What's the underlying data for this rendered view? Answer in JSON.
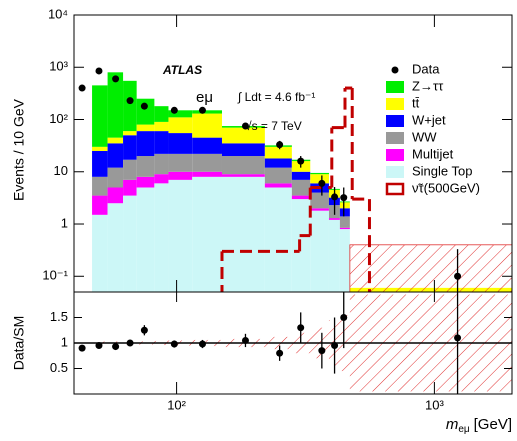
{
  "chart_data": {
    "type": "stacked_histogram",
    "log_x": true,
    "log_y": true,
    "y_label": "Events / 10 GeV",
    "x_label": {
      "symbol": "m",
      "subscript": "eμ",
      "unit": "[GeV]"
    },
    "annotations": {
      "experiment": "ATLAS",
      "channel": "eμ",
      "lumi": "∫ Ldt = 4.6 fb⁻¹",
      "energy": "√s = 7 TeV"
    },
    "xlim": [
      40,
      2000
    ],
    "xticks": [
      {
        "value": 100,
        "label": "10²"
      },
      {
        "value": 1000,
        "label": "10³"
      }
    ],
    "ylim": [
      0.05,
      10000
    ],
    "yticks": [
      {
        "value": 0.1,
        "label": "10⁻¹"
      },
      1,
      10,
      {
        "value": 100,
        "label": "10²"
      },
      {
        "value": 1000,
        "label": "10³"
      },
      {
        "value": 10000,
        "label": "10⁴"
      }
    ],
    "bins": [
      47,
      54,
      62,
      70,
      82,
      93,
      115,
      150,
      220,
      280,
      330,
      390,
      430,
      470,
      2000
    ],
    "series": [
      {
        "name": "Single Top",
        "color": "#ccf7f7",
        "values": [
          1.5,
          2.5,
          3.5,
          5,
          6,
          7,
          8,
          8,
          5,
          3,
          1.8,
          1.2,
          0.8,
          0
        ]
      },
      {
        "name": "Multijet",
        "color": "#ff00ff",
        "values": [
          2,
          2.5,
          3.5,
          3,
          3,
          3,
          2,
          1,
          1,
          0.5,
          0.2,
          0.1,
          0.05,
          0
        ]
      },
      {
        "name": "WW",
        "color": "#999999",
        "values": [
          4.5,
          7,
          10,
          12,
          13,
          12,
          12,
          11,
          6,
          3.5,
          2,
          1,
          0.55,
          0
        ]
      },
      {
        "name": "W+jet",
        "color": "#0000ff",
        "values": [
          17,
          23,
          33,
          40,
          38,
          33,
          23,
          15,
          6,
          3,
          2,
          0.9,
          0.6,
          0
        ]
      },
      {
        "name": "tt̄",
        "color": "#ffff00",
        "values": [
          5,
          10,
          10,
          20,
          30,
          55,
          85,
          35,
          12,
          6,
          3,
          1.3,
          0.6,
          0.06
        ]
      },
      {
        "name": "Z→ττ",
        "color": "#00ee00",
        "values": [
          420,
          755,
          490,
          170,
          90,
          40,
          20,
          5,
          2,
          1,
          0.5,
          0.2,
          0.1,
          0
        ]
      }
    ],
    "data": {
      "name": "Data",
      "color": "#000000",
      "x": [
        43,
        50,
        58,
        66,
        75,
        98,
        126,
        185,
        251,
        303,
        366,
        410,
        445,
        1230
      ],
      "values": [
        400,
        850,
        600,
        230,
        180,
        150,
        150,
        75,
        33,
        16,
        6,
        3.3,
        3.2,
        0.1
      ],
      "errors": [
        40,
        60,
        50,
        30,
        25,
        20,
        20,
        10,
        6,
        4,
        2.5,
        1.8,
        1.8,
        0.23
      ]
    },
    "signal": {
      "name": "ν̃τ(500GeV)",
      "color": "#c00000",
      "bins": [
        150,
        300,
        330,
        400,
        450,
        480,
        560
      ],
      "values": [
        0.3,
        0.6,
        5,
        70,
        400,
        3
      ]
    },
    "uncertainty_band": {
      "bins": [
        470,
        2000
      ],
      "upper": 0.4,
      "color": "#e03030"
    },
    "ratio": {
      "y_label": "Data/SM",
      "ylim": [
        0,
        2
      ],
      "yticks": [
        0.5,
        1,
        1.5
      ],
      "reference_line": 1,
      "values": [
        0.9,
        0.95,
        0.93,
        1.0,
        1.25,
        0.98,
        0.98,
        1.05,
        0.8,
        1.3,
        0.85,
        0.95,
        1.5,
        1.1
      ],
      "errors": [
        0.05,
        0.04,
        0.05,
        0.06,
        0.1,
        0.07,
        0.08,
        0.13,
        0.15,
        0.3,
        0.35,
        0.55,
        0.6,
        1.2
      ],
      "band_errors": [
        0.03,
        0.03,
        0.03,
        0.03,
        0.04,
        0.05,
        0.06,
        0.08,
        0.12,
        0.2,
        0.3,
        0.45,
        0.55,
        0.95
      ]
    }
  }
}
